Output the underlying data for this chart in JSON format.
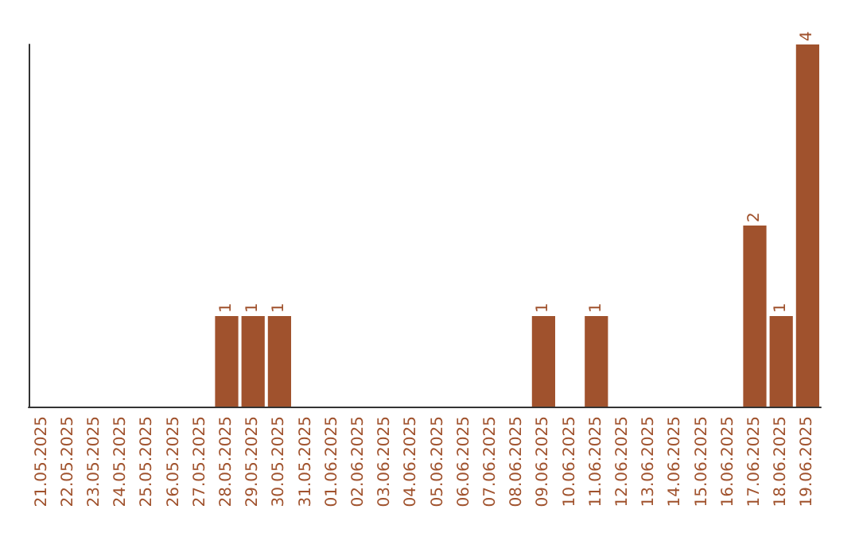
{
  "chart_data": {
    "type": "bar",
    "categories": [
      "21.05.2025",
      "22.05.2025",
      "23.05.2025",
      "24.05.2025",
      "25.05.2025",
      "26.05.2025",
      "27.05.2025",
      "28.05.2025",
      "29.05.2025",
      "30.05.2025",
      "31.05.2025",
      "01.06.2025",
      "02.06.2025",
      "03.06.2025",
      "04.06.2025",
      "05.06.2025",
      "06.06.2025",
      "07.06.2025",
      "08.06.2025",
      "09.06.2025",
      "10.06.2025",
      "11.06.2025",
      "12.06.2025",
      "13.06.2025",
      "14.06.2025",
      "15.06.2025",
      "16.06.2025",
      "17.06.2025",
      "18.06.2025",
      "19.06.2025"
    ],
    "values": [
      0,
      0,
      0,
      0,
      0,
      0,
      0,
      1,
      1,
      1,
      0,
      0,
      0,
      0,
      0,
      0,
      0,
      0,
      0,
      1,
      0,
      1,
      0,
      0,
      0,
      0,
      0,
      2,
      1,
      4
    ],
    "value_labels": [
      null,
      null,
      null,
      null,
      null,
      null,
      null,
      "1",
      "1",
      "1",
      null,
      null,
      null,
      null,
      null,
      null,
      null,
      null,
      null,
      "1",
      null,
      "1",
      null,
      null,
      null,
      null,
      null,
      "2",
      "1",
      "4"
    ],
    "color": "#a0522d",
    "tick_labels": "x"
  }
}
